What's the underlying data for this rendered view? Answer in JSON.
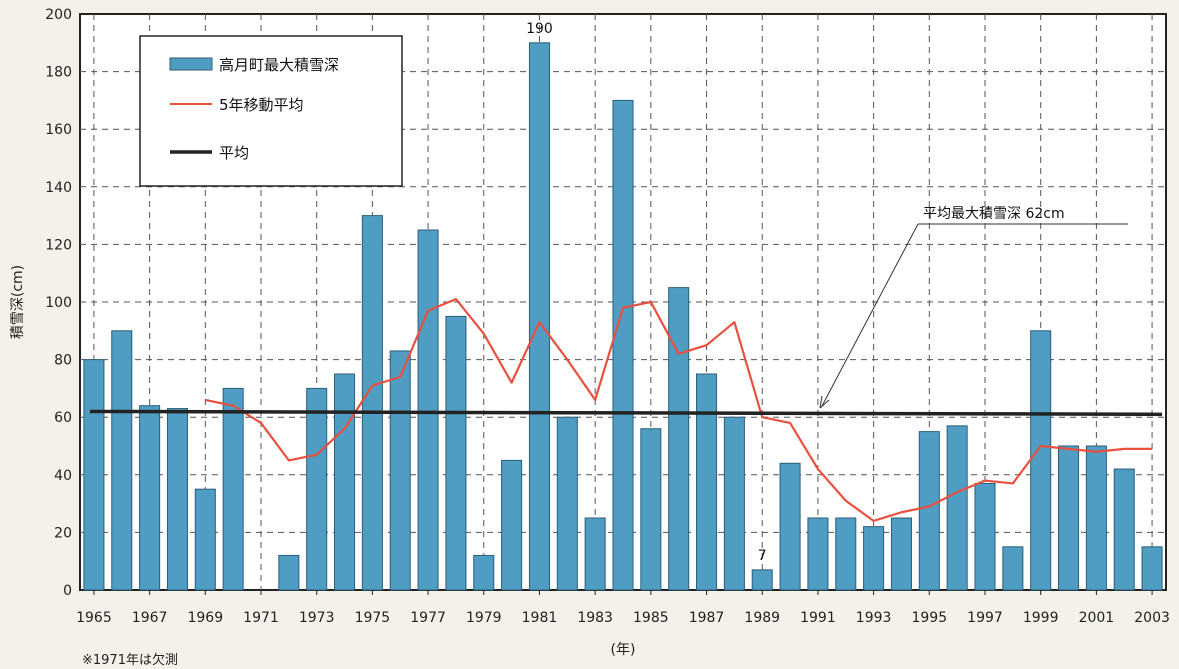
{
  "chart_data": {
    "type": "bar",
    "ylabel": "積雪深(cm)",
    "xlabel": "(年)",
    "ylim": [
      0,
      200
    ],
    "yticks": [
      0,
      20,
      40,
      60,
      80,
      100,
      120,
      140,
      160,
      180,
      200
    ],
    "x_tick_labels": [
      "1965",
      "1967",
      "1969",
      "1971",
      "1973",
      "1975",
      "1977",
      "1979",
      "1981",
      "1983",
      "1985",
      "1987",
      "1989",
      "1991",
      "1993",
      "1995",
      "1997",
      "1999",
      "2001",
      "2003"
    ],
    "categories": [
      1965,
      1966,
      1967,
      1968,
      1969,
      1970,
      1971,
      1972,
      1973,
      1974,
      1975,
      1976,
      1977,
      1978,
      1979,
      1980,
      1981,
      1982,
      1983,
      1984,
      1985,
      1986,
      1987,
      1988,
      1989,
      1990,
      1991,
      1992,
      1993,
      1994,
      1995,
      1996,
      1997,
      1998,
      1999,
      2000,
      2001,
      2002,
      2003
    ],
    "grid": true,
    "legend_position": "top-left",
    "series": [
      {
        "name": "高月町最大積雪深",
        "type": "bar",
        "color": "#4f9dc3",
        "values": [
          80,
          90,
          64,
          63,
          35,
          70,
          0,
          12,
          70,
          75,
          130,
          83,
          125,
          95,
          12,
          45,
          190,
          60,
          25,
          170,
          56,
          105,
          75,
          60,
          7,
          44,
          25,
          25,
          22,
          25,
          55,
          57,
          37,
          15,
          90,
          50,
          50,
          42,
          15
        ]
      },
      {
        "name": "5年移動平均",
        "type": "line",
        "color": "#e8503f",
        "x": [
          1969,
          1970,
          1971,
          1972,
          1973,
          1974,
          1975,
          1976,
          1977,
          1978,
          1979,
          1980,
          1981,
          1982,
          1983,
          1984,
          1985,
          1986,
          1987,
          1988,
          1989,
          1990,
          1991,
          1992,
          1993,
          1994,
          1995,
          1996,
          1997,
          1998,
          1999,
          2000,
          2001,
          2002,
          2003
        ],
        "values": [
          66,
          64,
          58,
          45,
          47,
          56,
          71,
          74,
          97,
          101,
          89,
          72,
          93,
          80,
          66,
          98,
          100,
          82,
          85,
          93,
          60,
          58,
          42,
          31,
          24,
          27,
          29,
          34,
          38,
          37,
          50,
          49,
          48,
          49,
          49
        ]
      },
      {
        "name": "平均",
        "type": "line",
        "color": "#222222",
        "x": [
          1965,
          2003
        ],
        "values": [
          62,
          61
        ]
      }
    ],
    "annotations": {
      "max_label": "190",
      "min_label": "7",
      "mean_label": "平均最大積雪深 62cm"
    },
    "note": "※1971年は欠測"
  }
}
